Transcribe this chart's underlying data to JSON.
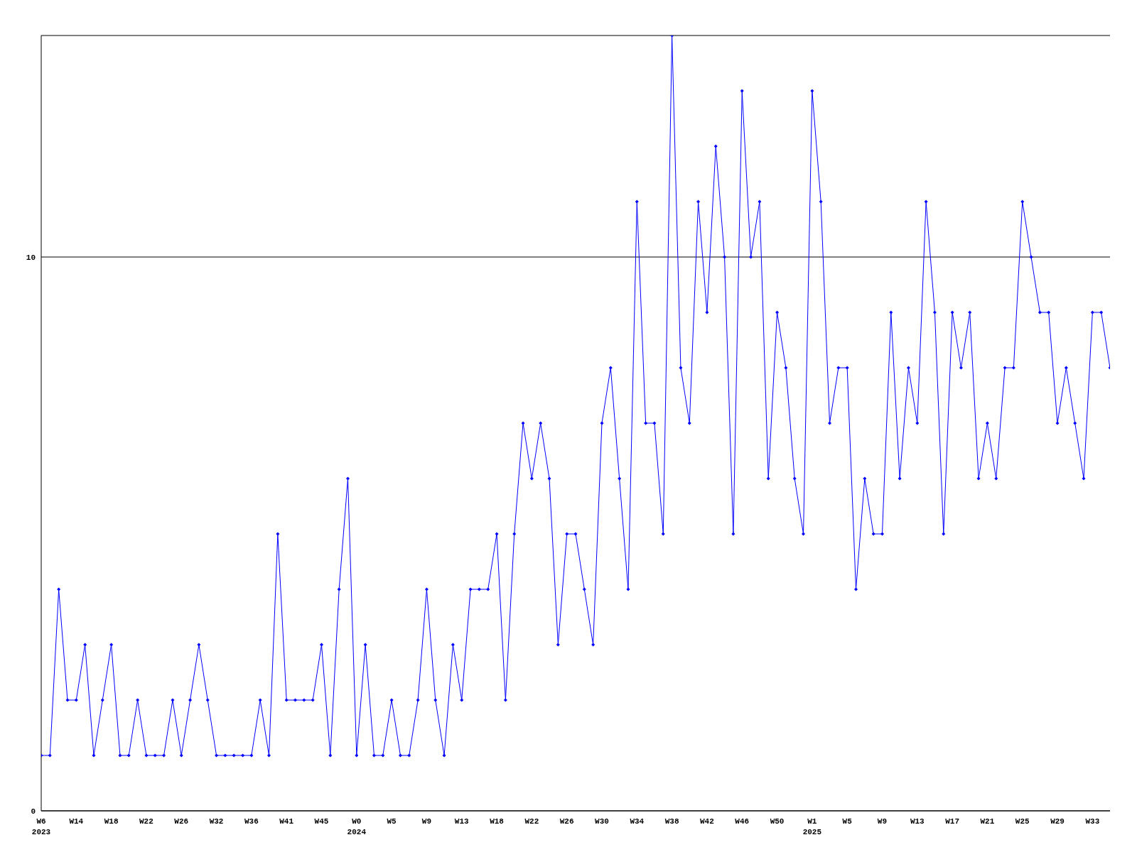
{
  "chart_data": {
    "type": "line",
    "categories": [
      "W6\n2023",
      null,
      null,
      null,
      "W14",
      null,
      null,
      null,
      "W18",
      null,
      null,
      null,
      "W22",
      null,
      null,
      null,
      "W26",
      null,
      null,
      null,
      "W32",
      null,
      null,
      null,
      "W36",
      null,
      null,
      null,
      "W41",
      null,
      null,
      null,
      "W45",
      null,
      null,
      null,
      "W0\n2024",
      null,
      null,
      null,
      "W5",
      null,
      null,
      null,
      "W9",
      null,
      null,
      null,
      "W13",
      null,
      null,
      null,
      "W18",
      null,
      null,
      null,
      "W22",
      null,
      null,
      null,
      "W26",
      null,
      null,
      null,
      "W30",
      null,
      null,
      null,
      "W34",
      null,
      null,
      null,
      "W38",
      null,
      null,
      null,
      "W42",
      null,
      null,
      null,
      "W46",
      null,
      null,
      null,
      "W50",
      null,
      null,
      null,
      "W1\n2025",
      null,
      null,
      null,
      "W5",
      null,
      null,
      null,
      "W9",
      null,
      null,
      null,
      "W13",
      null,
      null,
      null,
      "W17",
      null,
      null,
      null,
      "W21",
      null,
      null,
      null,
      "W25",
      null,
      null,
      null,
      "W29",
      null,
      null,
      null,
      "W33",
      null,
      null
    ],
    "series": [
      {
        "color": "#0000ff",
        "values": [
          1,
          1,
          4,
          2,
          2,
          3,
          1,
          2,
          3,
          1,
          1,
          2,
          1,
          1,
          1,
          2,
          1,
          2,
          3,
          2,
          1,
          1,
          1,
          1,
          1,
          2,
          1,
          5,
          2,
          2,
          2,
          2,
          3,
          1,
          4,
          6,
          1,
          3,
          1,
          1,
          2,
          1,
          1,
          2,
          4,
          2,
          1,
          3,
          2,
          4,
          4,
          4,
          5,
          2,
          5,
          7,
          6,
          7,
          6,
          3,
          5,
          5,
          4,
          3,
          7,
          8,
          6,
          4,
          11,
          7,
          7,
          5,
          14,
          8,
          7,
          11,
          9,
          12,
          10,
          5,
          13,
          10,
          11,
          6,
          9,
          8,
          6,
          5,
          13,
          11,
          7,
          8,
          8,
          4,
          6,
          5,
          5,
          9,
          6,
          8,
          7,
          11,
          9,
          5,
          9,
          8,
          9,
          6,
          7,
          6,
          8,
          8,
          11,
          10,
          9,
          9,
          7,
          8,
          7,
          6,
          9,
          9,
          8
        ]
      }
    ],
    "ylim": [
      0,
      14
    ],
    "yticks": [
      0,
      10
    ],
    "grid": "y",
    "marker": "diamond",
    "line_style": "solid"
  }
}
